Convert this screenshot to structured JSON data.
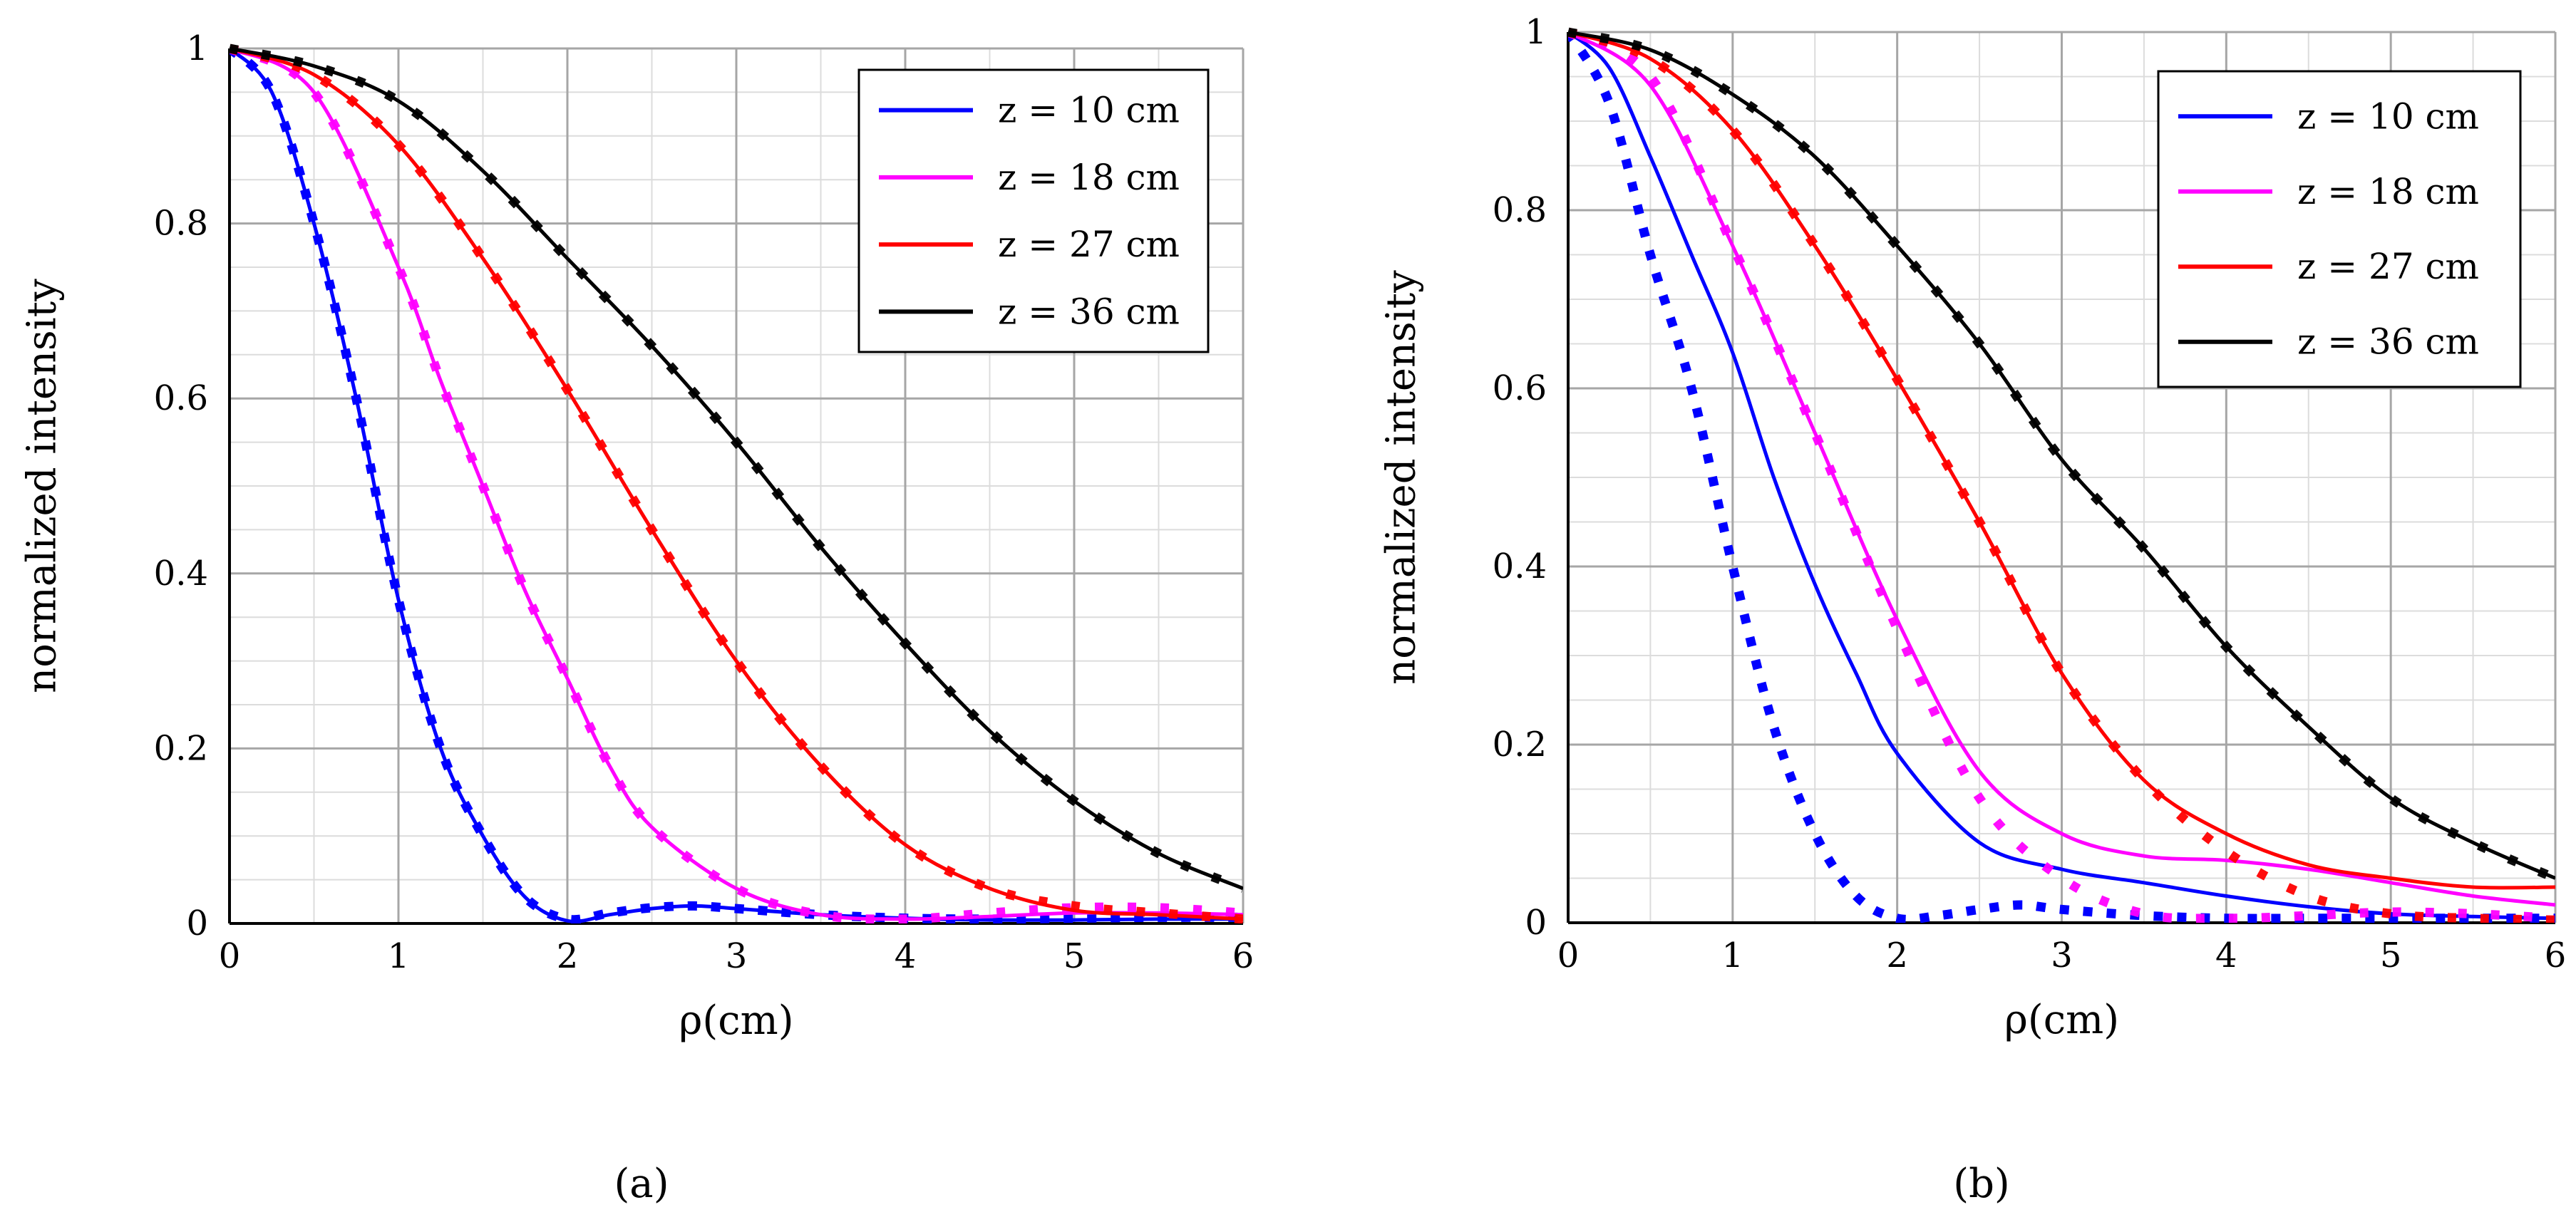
{
  "chart_data": [
    {
      "type": "line",
      "panel_label": "(a)",
      "xlabel": "ρ(cm)",
      "ylabel": "normalized  intensity",
      "xlim": [
        0,
        6
      ],
      "ylim": [
        0,
        1
      ],
      "xticks": [
        "0",
        "1",
        "2",
        "3",
        "4",
        "5",
        "6"
      ],
      "yticks": [
        "0",
        "0.2",
        "0.4",
        "0.6",
        "0.8",
        "1"
      ],
      "grid": true,
      "legend_position": "top-right",
      "series": [
        {
          "name": "z = 10 cm",
          "color": "#0000ff",
          "style": "solid",
          "x": [
            0,
            0.25,
            0.5,
            0.75,
            1.0,
            1.25,
            1.5,
            1.75,
            2.0,
            2.25,
            2.5,
            2.75,
            3.0,
            3.5,
            4.0,
            4.5,
            5.0,
            5.5,
            6.0
          ],
          "y": [
            1.0,
            0.95,
            0.8,
            0.6,
            0.37,
            0.2,
            0.1,
            0.03,
            0.003,
            0.01,
            0.017,
            0.02,
            0.017,
            0.01,
            0.006,
            0.004,
            0.004,
            0.005,
            0.005
          ]
        },
        {
          "name": "z = 10 cm (dotted)",
          "color": "#0000ff",
          "style": "dotted",
          "x": [
            0,
            0.25,
            0.5,
            0.75,
            1.0,
            1.25,
            1.5,
            1.75,
            2.0,
            2.25,
            2.5,
            2.75,
            3.0,
            3.5,
            4.0,
            4.5,
            5.0,
            5.5,
            6.0
          ],
          "y": [
            1.0,
            0.95,
            0.8,
            0.6,
            0.37,
            0.2,
            0.1,
            0.03,
            0.005,
            0.012,
            0.018,
            0.02,
            0.017,
            0.01,
            0.006,
            0.005,
            0.006,
            0.007,
            0.007
          ]
        },
        {
          "name": "z = 18 cm",
          "color": "#ff00ff",
          "style": "solid",
          "x": [
            0,
            0.5,
            1.0,
            1.25,
            1.5,
            1.75,
            2.0,
            2.25,
            2.5,
            3.0,
            3.5,
            4.0,
            4.5,
            5.0,
            5.5,
            6.0
          ],
          "y": [
            1.0,
            0.95,
            0.75,
            0.62,
            0.5,
            0.38,
            0.28,
            0.18,
            0.11,
            0.04,
            0.01,
            0.005,
            0.008,
            0.012,
            0.012,
            0.01
          ],
          "marker_y": [
            1.0,
            0.95,
            0.75,
            0.62,
            0.5,
            0.38,
            0.28,
            0.18,
            0.11,
            0.04,
            0.01,
            0.005,
            0.012,
            0.018,
            0.018,
            0.012
          ]
        },
        {
          "name": "z = 27 cm",
          "color": "#ff0000",
          "style": "solid",
          "x": [
            0,
            0.5,
            1.0,
            1.5,
            2.0,
            2.5,
            3.0,
            3.5,
            4.0,
            4.5,
            5.0,
            5.5,
            6.0
          ],
          "y": [
            1.0,
            0.97,
            0.89,
            0.76,
            0.61,
            0.45,
            0.3,
            0.18,
            0.09,
            0.04,
            0.015,
            0.01,
            0.005
          ],
          "marker_y": [
            1.0,
            0.97,
            0.89,
            0.76,
            0.61,
            0.45,
            0.3,
            0.18,
            0.09,
            0.04,
            0.02,
            0.012,
            0.005
          ]
        },
        {
          "name": "z = 36 cm",
          "color": "#000000",
          "style": "solid",
          "x": [
            0,
            0.5,
            1.0,
            1.5,
            2.0,
            2.5,
            3.0,
            3.5,
            4.0,
            4.5,
            5.0,
            5.5,
            6.0
          ],
          "y": [
            1.0,
            0.98,
            0.94,
            0.86,
            0.76,
            0.66,
            0.55,
            0.43,
            0.32,
            0.22,
            0.14,
            0.08,
            0.04
          ],
          "marker_y": [
            1.0,
            0.98,
            0.94,
            0.86,
            0.76,
            0.66,
            0.55,
            0.43,
            0.32,
            0.22,
            0.14,
            0.08,
            0.04
          ]
        }
      ],
      "legend": [
        {
          "label": "z = 10 cm",
          "color": "#0000ff"
        },
        {
          "label": "z = 18 cm",
          "color": "#ff00ff"
        },
        {
          "label": "z = 27 cm",
          "color": "#ff0000"
        },
        {
          "label": "z = 36 cm",
          "color": "#000000"
        }
      ]
    },
    {
      "type": "line",
      "panel_label": "(b)",
      "xlabel": "ρ(cm)",
      "ylabel": "normalized intensity",
      "xlim": [
        0,
        6
      ],
      "ylim": [
        0,
        1
      ],
      "xticks": [
        "0",
        "1",
        "2",
        "3",
        "4",
        "5",
        "6"
      ],
      "yticks": [
        "0",
        "0.2",
        "0.4",
        "0.6",
        "0.8",
        "1"
      ],
      "grid": true,
      "legend_position": "top-right",
      "series": [
        {
          "name": "z = 10 cm",
          "color": "#0000ff",
          "style": "solid",
          "x": [
            0,
            0.25,
            0.5,
            0.75,
            1.0,
            1.25,
            1.5,
            1.75,
            2.0,
            2.5,
            3.0,
            3.5,
            4.0,
            4.5,
            5.0,
            5.5,
            6.0
          ],
          "y": [
            1.0,
            0.96,
            0.86,
            0.75,
            0.64,
            0.5,
            0.38,
            0.28,
            0.19,
            0.09,
            0.06,
            0.045,
            0.03,
            0.018,
            0.01,
            0.007,
            0.005
          ]
        },
        {
          "name": "z = 10 cm (dotted)",
          "color": "#0000ff",
          "style": "dotted",
          "x": [
            0,
            0.25,
            0.5,
            0.75,
            1.0,
            1.25,
            1.5,
            1.75,
            2.0,
            2.25,
            2.5,
            2.75,
            3.0,
            3.5,
            4.0,
            4.5,
            5.0,
            5.5,
            6.0
          ],
          "y": [
            1.0,
            0.92,
            0.75,
            0.6,
            0.4,
            0.22,
            0.1,
            0.03,
            0.005,
            0.008,
            0.015,
            0.02,
            0.015,
            0.008,
            0.005,
            0.005,
            0.005,
            0.005,
            0.005
          ]
        },
        {
          "name": "z = 18 cm",
          "color": "#ff00ff",
          "style": "solid",
          "x": [
            0,
            0.5,
            1.0,
            1.5,
            2.0,
            2.5,
            3.0,
            3.5,
            4.0,
            4.5,
            5.0,
            5.5,
            6.0
          ],
          "y": [
            1.0,
            0.94,
            0.76,
            0.55,
            0.34,
            0.17,
            0.1,
            0.075,
            0.07,
            0.06,
            0.045,
            0.03,
            0.02
          ],
          "marker_y": [
            1.0,
            0.95,
            0.76,
            0.55,
            0.33,
            0.14,
            0.05,
            0.01,
            0.005,
            0.008,
            0.012,
            0.01,
            0.005
          ]
        },
        {
          "name": "z = 27 cm",
          "color": "#ff0000",
          "style": "solid",
          "x": [
            0,
            0.5,
            1.0,
            1.5,
            2.0,
            2.5,
            3.0,
            3.5,
            4.0,
            4.5,
            5.0,
            5.5,
            6.0
          ],
          "y": [
            1.0,
            0.97,
            0.89,
            0.76,
            0.61,
            0.45,
            0.28,
            0.16,
            0.1,
            0.065,
            0.05,
            0.04,
            0.04
          ],
          "marker_y": [
            1.0,
            0.97,
            0.89,
            0.76,
            0.61,
            0.45,
            0.28,
            0.16,
            0.08,
            0.03,
            0.01,
            0.005,
            0.003
          ]
        },
        {
          "name": "z = 36 cm",
          "color": "#000000",
          "style": "solid",
          "x": [
            0,
            0.5,
            1.0,
            1.5,
            2.0,
            2.5,
            3.0,
            3.5,
            4.0,
            4.5,
            5.0,
            5.5,
            6.0
          ],
          "y": [
            1.0,
            0.98,
            0.93,
            0.86,
            0.76,
            0.65,
            0.52,
            0.42,
            0.31,
            0.22,
            0.14,
            0.09,
            0.05
          ],
          "marker_y": [
            1.0,
            0.98,
            0.93,
            0.86,
            0.76,
            0.65,
            0.52,
            0.42,
            0.31,
            0.22,
            0.14,
            0.09,
            0.05
          ]
        }
      ],
      "legend": [
        {
          "label": "z = 10 cm",
          "color": "#0000ff"
        },
        {
          "label": "z = 18 cm",
          "color": "#ff00ff"
        },
        {
          "label": "z = 27 cm",
          "color": "#ff0000"
        },
        {
          "label": "z = 36 cm",
          "color": "#000000"
        }
      ]
    }
  ]
}
